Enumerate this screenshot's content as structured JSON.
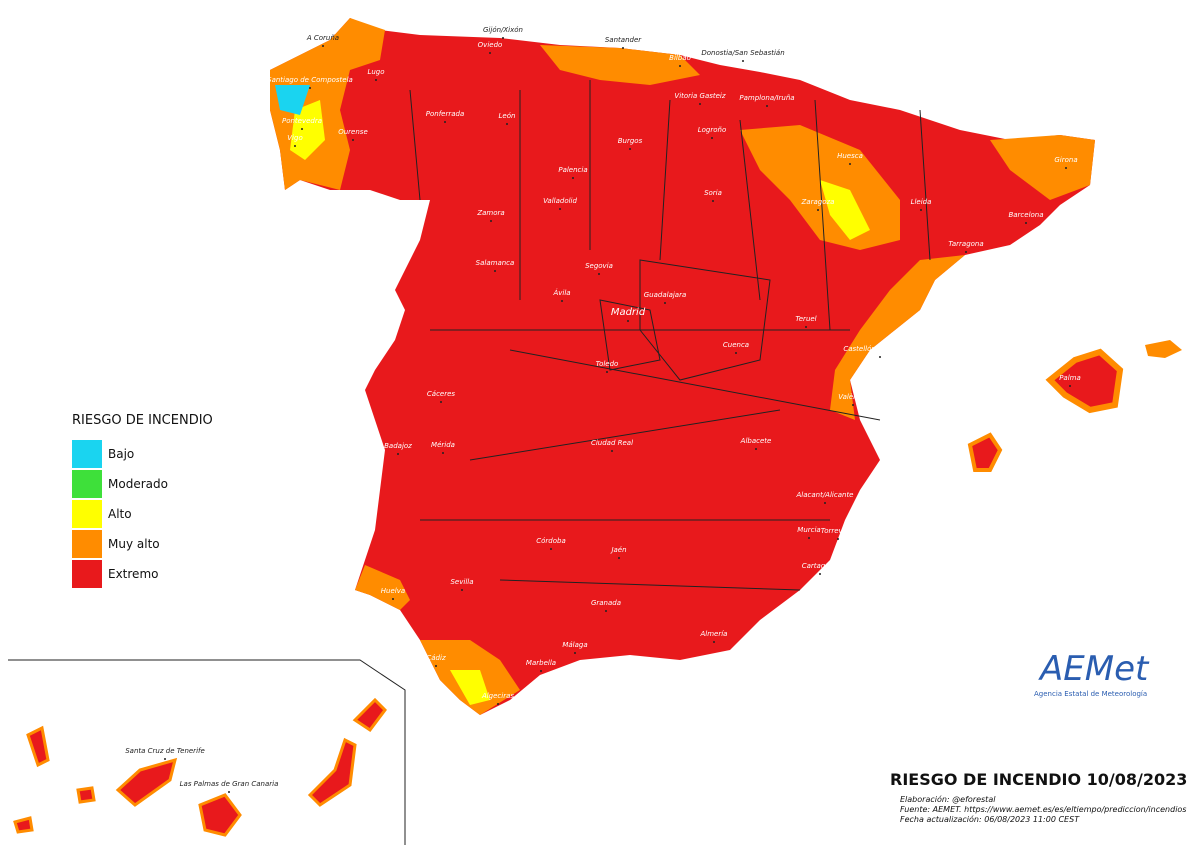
{
  "map_title": "RIESGO DE INCENDIO 10/08/2023",
  "credits": [
    "Elaboración: @eforestal",
    "Fuente: AEMET. https://www.aemet.es/es/eltiempo/prediccion/incendios",
    "Fecha actualización: 06/08/2023 11:00 CEST"
  ],
  "legend": {
    "title": "RIESGO DE INCENDIO",
    "items": [
      {
        "label": "Bajo",
        "color": "#1ad4f0"
      },
      {
        "label": "Moderado",
        "color": "#3ee03a"
      },
      {
        "label": "Alto",
        "color": "#ffff00"
      },
      {
        "label": "Muy alto",
        "color": "#ff8c00"
      },
      {
        "label": "Extremo",
        "color": "#e8191c"
      }
    ]
  },
  "logo": {
    "name": "AEMet",
    "subtitle": "Agencia Estatal de Meteorología"
  },
  "cities": [
    "A Coruña",
    "Gijón/Xixón",
    "Oviedo",
    "Santander",
    "Bilbao",
    "Donostia/San Sebastián",
    "Santiago de Compostela",
    "Lugo",
    "Vitoria Gasteiz",
    "Pamplona/Iruña",
    "Pontevedra",
    "Vigo",
    "Ourense",
    "Ponferrada",
    "León",
    "Logroño",
    "Burgos",
    "Huesca",
    "Girona",
    "Palencia",
    "Soria",
    "Zaragoza",
    "Lleida",
    "Barcelona",
    "Zamora",
    "Valladolid",
    "Tarragona",
    "Salamanca",
    "Segovia",
    "Guadalajara",
    "Ávila",
    "Madrid",
    "Teruel",
    "Castellón de la Plana",
    "Cuenca",
    "Palma",
    "Cáceres",
    "Toledo",
    "València",
    "Badajoz",
    "Mérida",
    "Ciudad Real",
    "Albacete",
    "Alacant/Alicante",
    "Córdoba",
    "Jaén",
    "Murcia",
    "Torrevieja",
    "Cartagena",
    "Sevilla",
    "Huelva",
    "Granada",
    "Almería",
    "Málaga",
    "Marbella",
    "Cádiz",
    "Algeciras",
    "Santa Cruz de Tenerife",
    "Las Palmas de Gran Canaria"
  ]
}
